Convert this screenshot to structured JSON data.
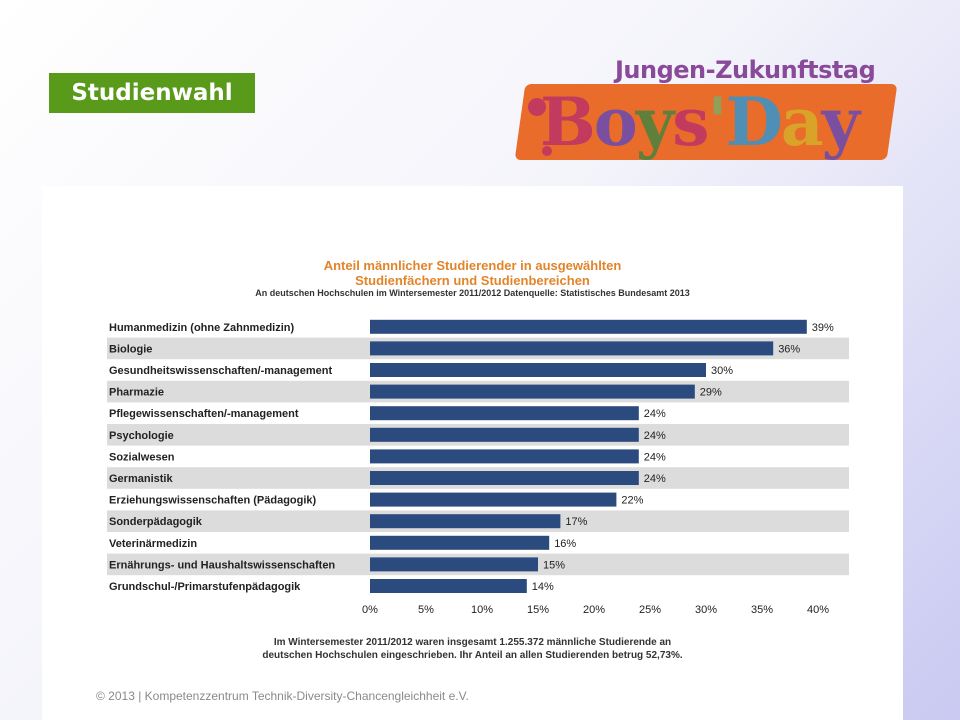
{
  "header": {
    "badge": "Studienwahl",
    "logo_tagline": "Jungen-Zukunftstag",
    "logo_word": "Boys'Day"
  },
  "chart_data": {
    "type": "bar",
    "orientation": "horizontal",
    "title_line1": "Anteil männlicher Studierender in ausgewählten",
    "title_line2": "Studienfächern und Studienbereichen",
    "subtitle": "An deutschen Hochschulen im Wintersemester 2011/2012 Datenquelle: Statistisches Bundesamt 2013",
    "categories": [
      "Humanmedizin (ohne Zahnmedizin)",
      "Biologie",
      "Gesundheitswissenschaften/-management",
      "Pharmazie",
      "Pflegewissenschaften/-management",
      "Psychologie",
      "Sozialwesen",
      "Germanistik",
      "Erziehungswissenschaften (Pädagogik)",
      "Sonderpädagogik",
      "Veterinärmedizin",
      "Ernährungs- und Haushaltswissenschaften",
      "Grundschul-/Primarstufenpädagogik"
    ],
    "values": [
      39,
      36,
      30,
      29,
      24,
      24,
      24,
      24,
      22,
      17,
      16,
      15,
      14
    ],
    "value_labels": [
      "39%",
      "36%",
      "30%",
      "29%",
      "24%",
      "24%",
      "24%",
      "24%",
      "22%",
      "17%",
      "16%",
      "15%",
      "14%"
    ],
    "x_ticks": [
      "0%",
      "5%",
      "10%",
      "15%",
      "20%",
      "25%",
      "30%",
      "35%",
      "40%"
    ],
    "xlim": [
      0,
      40
    ],
    "bar_color": "#2b4a7e",
    "stripe_color": "#dcdcdc",
    "footnote_line1": "Im Wintersemester  2011/2012  waren insgesamt  1.255.372  männliche Studierende an",
    "footnote_line2": "deutschen Hochschulen eingeschrieben. Ihr Anteil an allen Studierenden betrug 52,73%."
  },
  "footer": {
    "copyright": "© 2013 | Kompetenzzentrum Technik-Diversity-Chancengleichheit e.V."
  }
}
